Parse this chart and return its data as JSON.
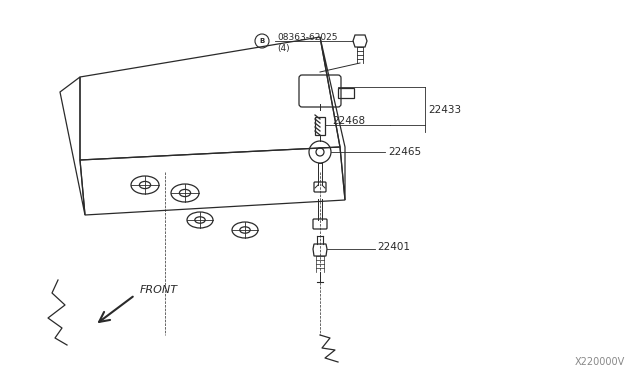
{
  "bg_color": "#ffffff",
  "line_color": "#2a2a2a",
  "text_color": "#2a2a2a",
  "watermark": "X220000V",
  "parts": {
    "bolt_label": "08363-62025",
    "bolt_sublabel": "(4)",
    "p22433": "22433",
    "p22468": "22468",
    "p22465": "22465",
    "p22401": "22401"
  },
  "front_label": "FRONT",
  "fig_width": 6.4,
  "fig_height": 3.72,
  "dpi": 100
}
